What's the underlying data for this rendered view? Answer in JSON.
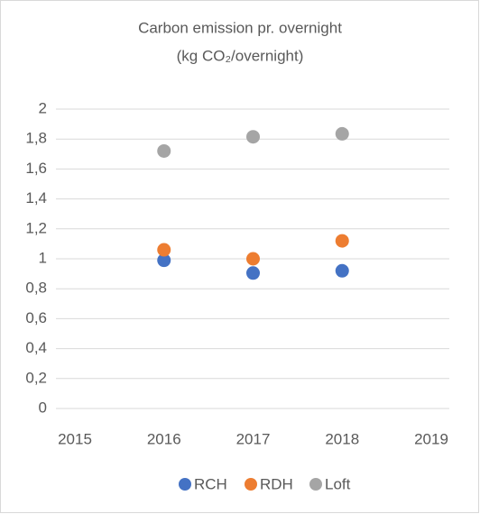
{
  "chart_data": {
    "type": "scatter",
    "title": "Carbon emission pr. overnight",
    "subtitle": "(kg CO₂/overnight)",
    "x": [
      2016,
      2017,
      2018
    ],
    "series": [
      {
        "name": "RCH",
        "color": "#4472c4",
        "values": [
          0.99,
          0.905,
          0.92
        ]
      },
      {
        "name": "RDH",
        "color": "#ed7d31",
        "values": [
          1.06,
          1.0,
          1.12
        ]
      },
      {
        "name": "Loft",
        "color": "#a5a5a5",
        "values": [
          1.72,
          1.815,
          1.835
        ]
      }
    ],
    "xlim": [
      2015,
      2019
    ],
    "xticks": [
      2015,
      2016,
      2017,
      2018,
      2019
    ],
    "ylim": [
      0,
      2
    ],
    "yticks": [
      0,
      {
        "value": 0.2,
        "label": "0,2"
      },
      {
        "value": 0.4,
        "label": "0,4"
      },
      {
        "value": 0.6,
        "label": "0,6"
      },
      {
        "value": 0.8,
        "label": "0,8"
      },
      1,
      {
        "value": 1.2,
        "label": "1,2"
      },
      {
        "value": 1.4,
        "label": "1,4"
      },
      {
        "value": 1.6,
        "label": "1,6"
      },
      {
        "value": 1.8,
        "label": "1,8"
      },
      2
    ],
    "grid": true,
    "legend": "bottom"
  }
}
